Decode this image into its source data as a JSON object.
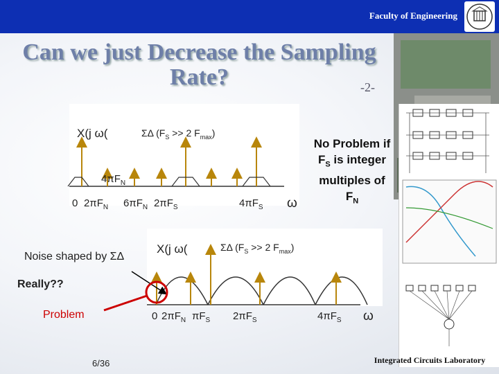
{
  "header": {
    "faculty": "Faculty of Engineering",
    "logo_icon": "university-logo-icon",
    "bar_color": "#0d2fb3"
  },
  "title": {
    "line1": "Can we just Decrease the Sampling",
    "line2": "Rate?",
    "part": "-2-"
  },
  "top_plot": {
    "xlabel_left": "X(j ω(",
    "sigma_label": "ΣΔ (F",
    "sigma_sub": "S",
    "sigma_mid": " >> 2 F",
    "sigma_sub2": "max",
    "sigma_end": ")",
    "label_4piFN": "4πF",
    "label_4piFN_sub": "N",
    "label_0": "0",
    "label_2piFN": "2πF",
    "label_2piFN_sub": "N",
    "label_6piFN": "6πF",
    "label_6piFN_sub": "N",
    "label_2piFS": "2πF",
    "label_2piFS_sub": "S",
    "label_4piFS": "4πF",
    "label_4piFS_sub": "S",
    "omega": "ω"
  },
  "note": {
    "line1": "No Problem if",
    "line2_a": "F",
    "line2_sub": "S",
    "line2_b": " is integer",
    "line3": "multiples of",
    "line4_a": "F",
    "line4_sub": "N"
  },
  "bottom_plot": {
    "noise_label": "Noise shaped by ΣΔ",
    "xlabel": "X(j ω(",
    "sigma_label": "ΣΔ (F",
    "sigma_sub": "S",
    "sigma_mid": " >> 2 F",
    "sigma_sub2": "max",
    "sigma_end": ")",
    "really": "Really??",
    "problem": "Problem",
    "label_0": "0",
    "label_2piFN": "2πF",
    "label_2piFN_sub": "N",
    "label_piFS": "πF",
    "label_piFS_sub": "S",
    "label_2piFS": "2πF",
    "label_2piFS_sub": "S",
    "label_4piFS": "4πF",
    "label_4piFS_sub": "S",
    "omega": "ω"
  },
  "footer": {
    "page": "6/36",
    "lab": "Integrated Circuits Laboratory"
  },
  "colors": {
    "impulse": "#b8860b",
    "problem_red": "#cc0000",
    "curve": "#333333"
  }
}
